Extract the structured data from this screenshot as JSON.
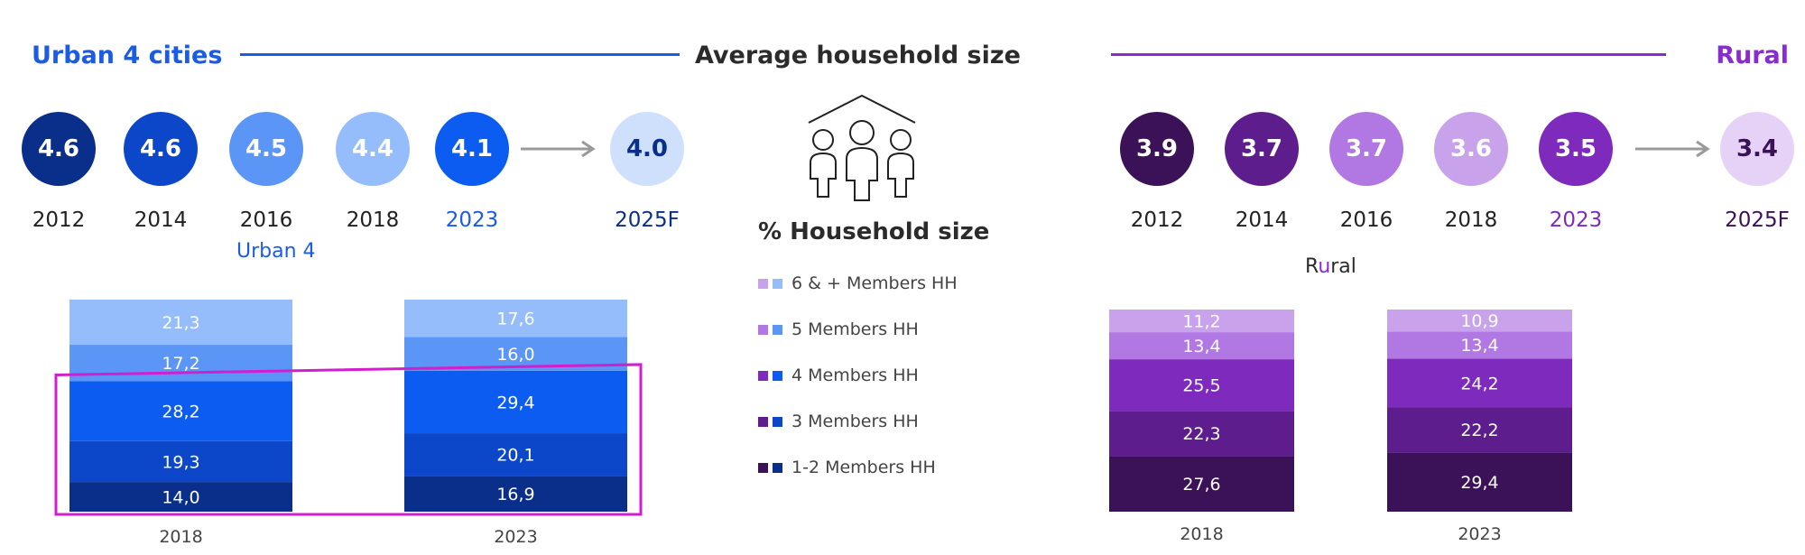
{
  "title": "Average household size",
  "urban": {
    "title": "Urban 4 cities",
    "accent": "#1a5ce6",
    "line_color": "#1a5ce6",
    "circles": [
      {
        "year": "2012",
        "value": "4.6",
        "color": "#0a2f8a",
        "text_color": "#ffffff",
        "year_color": "#222222"
      },
      {
        "year": "2014",
        "value": "4.6",
        "color": "#0d47c9",
        "text_color": "#ffffff",
        "year_color": "#222222"
      },
      {
        "year": "2016",
        "value": "4.5",
        "color": "#5b95f5",
        "text_color": "#ffffff",
        "year_color": "#222222"
      },
      {
        "year": "2018",
        "value": "4.4",
        "color": "#95bcfb",
        "text_color": "#ffffff",
        "year_color": "#222222"
      },
      {
        "year": "2023",
        "value": "4.1",
        "color": "#0d5cf2",
        "text_color": "#ffffff",
        "year_color": "#1a5ce6"
      },
      {
        "year": "2025F",
        "value": "4.0",
        "color": "#cfe0fd",
        "text_color": "#0a2f8a",
        "year_color": "#0a2f8a"
      }
    ],
    "chart_label": "Urban 4"
  },
  "rural": {
    "title": "Rural",
    "accent": "#8a2bd0",
    "line_color": "#8a2bd0",
    "circles": [
      {
        "year": "2012",
        "value": "3.9",
        "color": "#3b1257",
        "text_color": "#ffffff",
        "year_color": "#222222"
      },
      {
        "year": "2014",
        "value": "3.7",
        "color": "#5e1d8c",
        "text_color": "#ffffff",
        "year_color": "#222222"
      },
      {
        "year": "2016",
        "value": "3.7",
        "color": "#b177e3",
        "text_color": "#ffffff",
        "year_color": "#222222"
      },
      {
        "year": "2018",
        "value": "3.6",
        "color": "#c9a2ec",
        "text_color": "#ffffff",
        "year_color": "#222222"
      },
      {
        "year": "2023",
        "value": "3.5",
        "color": "#7e2bbd",
        "text_color": "#ffffff",
        "year_color": "#7e2bbd"
      },
      {
        "year": "2025F",
        "value": "3.4",
        "color": "#e6d2f6",
        "text_color": "#3b1257",
        "year_color": "#3b1257"
      }
    ],
    "chart_label_pre": "R",
    "chart_label_mid": "u",
    "chart_label_post": "ral"
  },
  "legend": {
    "title": "% Household size",
    "items": [
      {
        "label": "6 & + Members HH",
        "rural_color": "#c9a2ec",
        "urban_color": "#95bcfb"
      },
      {
        "label": "5 Members HH",
        "rural_color": "#b177e3",
        "urban_color": "#5b95f5"
      },
      {
        "label": "4 Members HH",
        "rural_color": "#7e2bbd",
        "urban_color": "#0d5cf2"
      },
      {
        "label": "3 Members HH",
        "rural_color": "#5e1d8c",
        "urban_color": "#0d47c9"
      },
      {
        "label": "1-2 Members HH",
        "rural_color": "#3b1257",
        "urban_color": "#0a2f8a"
      }
    ]
  },
  "chart_data": [
    {
      "type": "bar",
      "stacked": true,
      "title": "Urban 4",
      "categories": [
        "2018",
        "2023"
      ],
      "series": [
        {
          "name": "1-2 Members HH",
          "values": [
            14.0,
            16.9
          ],
          "labels": [
            "14,0",
            "16,9"
          ],
          "color": "#0a2f8a"
        },
        {
          "name": "3 Members HH",
          "values": [
            19.3,
            20.1
          ],
          "labels": [
            "19,3",
            "20,1"
          ],
          "color": "#0d47c9"
        },
        {
          "name": "4 Members HH",
          "values": [
            28.2,
            29.4
          ],
          "labels": [
            "28,2",
            "29,4"
          ],
          "color": "#0d5cf2"
        },
        {
          "name": "5 Members HH",
          "values": [
            17.2,
            16.0
          ],
          "labels": [
            "17,2",
            "16,0"
          ],
          "color": "#5b95f5"
        },
        {
          "name": "6 & + Members HH",
          "values": [
            21.3,
            17.6
          ],
          "labels": [
            "21,3",
            "17,6"
          ],
          "color": "#95bcfb"
        }
      ],
      "highlight": "1-2, 3 and 4 Members HH",
      "highlight_color": "#d11ecf"
    },
    {
      "type": "bar",
      "stacked": true,
      "title": "Rural",
      "categories": [
        "2018",
        "2023"
      ],
      "series": [
        {
          "name": "1-2 Members HH",
          "values": [
            27.6,
            29.4
          ],
          "labels": [
            "27,6",
            "29,4"
          ],
          "color": "#3b1257"
        },
        {
          "name": "3 Members HH",
          "values": [
            22.3,
            22.2
          ],
          "labels": [
            "22,3",
            "22,2"
          ],
          "color": "#5e1d8c"
        },
        {
          "name": "4 Members HH",
          "values": [
            25.5,
            24.2
          ],
          "labels": [
            "25,5",
            "24,2"
          ],
          "color": "#7e2bbd"
        },
        {
          "name": "5 Members HH",
          "values": [
            13.4,
            13.4
          ],
          "labels": [
            "13,4",
            "13,4"
          ],
          "color": "#b177e3"
        },
        {
          "name": "6 & + Members HH",
          "values": [
            11.2,
            10.9
          ],
          "labels": [
            "11,2",
            "10,9"
          ],
          "color": "#c9a2ec"
        }
      ]
    }
  ]
}
